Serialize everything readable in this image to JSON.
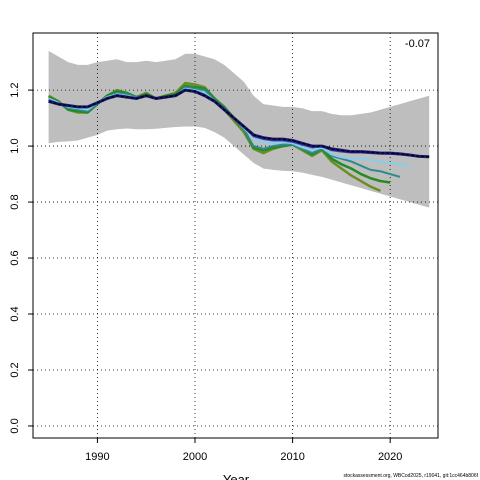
{
  "chart_data": {
    "type": "line",
    "annotation": "-0.07",
    "x_label": "Year",
    "footer": "stockassessment.org, WBCod2025, r19041, git:1cc464b806f",
    "xlim": [
      1983.4,
      2024.9
    ],
    "ylim": [
      -0.043,
      1.404
    ],
    "xticks": [
      1990,
      2000,
      2010,
      2020
    ],
    "yticks": [
      {
        "value": 0,
        "label": "0.0"
      },
      0.2,
      0.4,
      0.6,
      0.8,
      {
        "value": 1,
        "label": "1.0"
      },
      1.2
    ],
    "grid": true,
    "band_color": "#bebebe",
    "x": [
      1985,
      1986,
      1987,
      1988,
      1989,
      1990,
      1991,
      1992,
      1993,
      1994,
      1995,
      1996,
      1997,
      1998,
      1999,
      2000,
      2001,
      2002,
      2003,
      2004,
      2005,
      2006,
      2007,
      2008,
      2009,
      2010,
      2011,
      2012,
      2013,
      2014,
      2015,
      2016,
      2017,
      2018,
      2019,
      2020,
      2021,
      2022,
      2023,
      2024
    ],
    "band_upper": [
      1.34,
      1.32,
      1.3,
      1.29,
      1.29,
      1.3,
      1.305,
      1.31,
      1.3,
      1.3,
      1.305,
      1.3,
      1.305,
      1.31,
      1.33,
      1.33,
      1.32,
      1.31,
      1.29,
      1.26,
      1.23,
      1.18,
      1.15,
      1.145,
      1.14,
      1.14,
      1.135,
      1.125,
      1.125,
      1.115,
      1.11,
      1.11,
      1.115,
      1.12,
      1.13,
      1.14,
      1.15,
      1.16,
      1.17,
      1.18
    ],
    "band_lower": [
      1.01,
      1.015,
      1.017,
      1.02,
      1.03,
      1.04,
      1.055,
      1.06,
      1.063,
      1.06,
      1.06,
      1.062,
      1.065,
      1.068,
      1.07,
      1.07,
      1.065,
      1.05,
      1.03,
      1.0,
      0.97,
      0.94,
      0.92,
      0.915,
      0.912,
      0.91,
      0.905,
      0.897,
      0.89,
      0.88,
      0.87,
      0.86,
      0.85,
      0.84,
      0.83,
      0.82,
      0.81,
      0.8,
      0.79,
      0.78
    ],
    "series": [
      {
        "color": "#6b8e23",
        "values": [
          1.18,
          1.16,
          1.13,
          1.12,
          1.12,
          1.15,
          1.18,
          1.2,
          1.19,
          1.175,
          1.19,
          1.17,
          1.18,
          1.19,
          1.225,
          1.22,
          1.21,
          1.17,
          1.13,
          1.09,
          1.05,
          0.99,
          0.975,
          0.99,
          1.0,
          1.005,
          0.985,
          0.965,
          0.985,
          0.945,
          0.92,
          0.895,
          0.875,
          0.855,
          0.84,
          null,
          null,
          null,
          null,
          null
        ]
      },
      {
        "color": "#228b22",
        "values": [
          1.175,
          1.16,
          1.13,
          1.125,
          1.12,
          1.15,
          1.18,
          1.195,
          1.19,
          1.175,
          1.185,
          1.17,
          1.18,
          1.185,
          1.215,
          1.21,
          1.205,
          1.17,
          1.14,
          1.1,
          1.06,
          0.995,
          0.985,
          0.995,
          1.0,
          1.005,
          0.99,
          0.97,
          0.99,
          0.955,
          0.935,
          0.92,
          0.9,
          0.885,
          0.875,
          0.87,
          null,
          null,
          null,
          null
        ]
      },
      {
        "color": "#2e8b8b",
        "values": [
          1.17,
          1.155,
          1.135,
          1.13,
          1.125,
          1.15,
          1.175,
          1.19,
          1.185,
          1.175,
          1.18,
          1.17,
          1.175,
          1.18,
          1.21,
          1.205,
          1.2,
          1.165,
          1.135,
          1.1,
          1.06,
          1.0,
          0.99,
          1.0,
          1.005,
          1.005,
          0.99,
          0.975,
          0.99,
          0.965,
          0.955,
          0.945,
          0.93,
          0.915,
          0.91,
          0.9,
          0.89,
          null,
          null,
          null
        ]
      },
      {
        "color": "#87ceeb",
        "values": [
          1.17,
          1.155,
          1.14,
          1.135,
          1.13,
          1.155,
          1.175,
          1.185,
          1.18,
          1.172,
          1.18,
          1.17,
          1.175,
          1.18,
          1.205,
          1.2,
          1.19,
          1.16,
          1.13,
          1.1,
          1.065,
          1.03,
          1.01,
          1.01,
          1.015,
          1.01,
          0.995,
          0.985,
          0.995,
          0.97,
          0.96,
          0.955,
          0.955,
          0.95,
          0.945,
          0.94,
          0.935,
          0.93,
          null,
          null
        ]
      },
      {
        "color": "#4b4bc8",
        "values": [
          1.165,
          1.152,
          1.145,
          1.14,
          1.14,
          1.155,
          1.172,
          1.182,
          1.177,
          1.17,
          1.18,
          1.17,
          1.175,
          1.18,
          1.2,
          1.197,
          1.183,
          1.16,
          1.13,
          1.1,
          1.07,
          1.035,
          1.025,
          1.02,
          1.02,
          1.015,
          1.005,
          0.995,
          1.0,
          0.985,
          0.98,
          0.977,
          0.977,
          0.975,
          0.973,
          0.972,
          0.97,
          0.967,
          0.965,
          null
        ]
      },
      {
        "color": "#191970",
        "values": [
          1.16,
          1.15,
          1.145,
          1.14,
          1.14,
          1.155,
          1.17,
          1.18,
          1.175,
          1.17,
          1.18,
          1.17,
          1.175,
          1.18,
          1.2,
          1.195,
          1.18,
          1.16,
          1.13,
          1.1,
          1.07,
          1.04,
          1.03,
          1.025,
          1.025,
          1.02,
          1.01,
          1.0,
          1.0,
          0.99,
          0.985,
          0.98,
          0.98,
          0.978,
          0.975,
          0.975,
          0.972,
          0.968,
          0.963,
          0.962
        ]
      }
    ]
  }
}
